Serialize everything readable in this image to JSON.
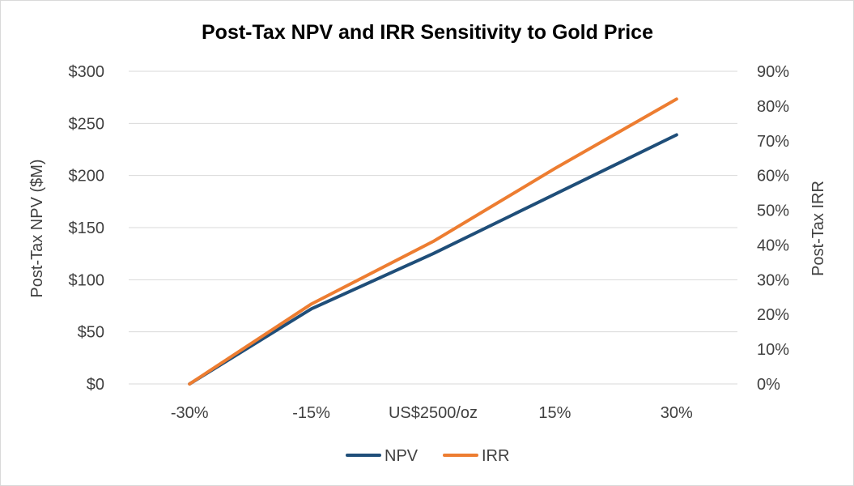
{
  "chart_data": {
    "type": "line",
    "title": "Post-Tax NPV and IRR Sensitivity to Gold Price",
    "categories": [
      "-30%",
      "-15%",
      "US$2500/oz",
      "15%",
      "30%"
    ],
    "xlabel": "",
    "y_left": {
      "label": "Post-Tax NPV ($M)",
      "ylim": [
        0,
        300
      ],
      "ticks": [
        0,
        50,
        100,
        150,
        200,
        250,
        300
      ],
      "tick_labels": [
        "$0",
        "$50",
        "$100",
        "$150",
        "$200",
        "$250",
        "$300"
      ]
    },
    "y_right": {
      "label": "Post-Tax IRR",
      "ylim": [
        0,
        90
      ],
      "ticks": [
        0,
        10,
        20,
        30,
        40,
        50,
        60,
        70,
        80,
        90
      ],
      "tick_labels": [
        "0%",
        "10%",
        "20%",
        "30%",
        "40%",
        "50%",
        "60%",
        "70%",
        "80%",
        "90%"
      ]
    },
    "series": [
      {
        "name": "NPV",
        "axis": "left",
        "unit": "$M",
        "values": [
          0,
          72,
          125,
          182,
          239
        ],
        "color": "#1f4e79"
      },
      {
        "name": "IRR",
        "axis": "right",
        "unit": "%",
        "values": [
          0,
          23,
          41,
          62,
          82
        ],
        "color": "#ed7d31"
      }
    ],
    "grid": true,
    "legend_position": "bottom"
  }
}
